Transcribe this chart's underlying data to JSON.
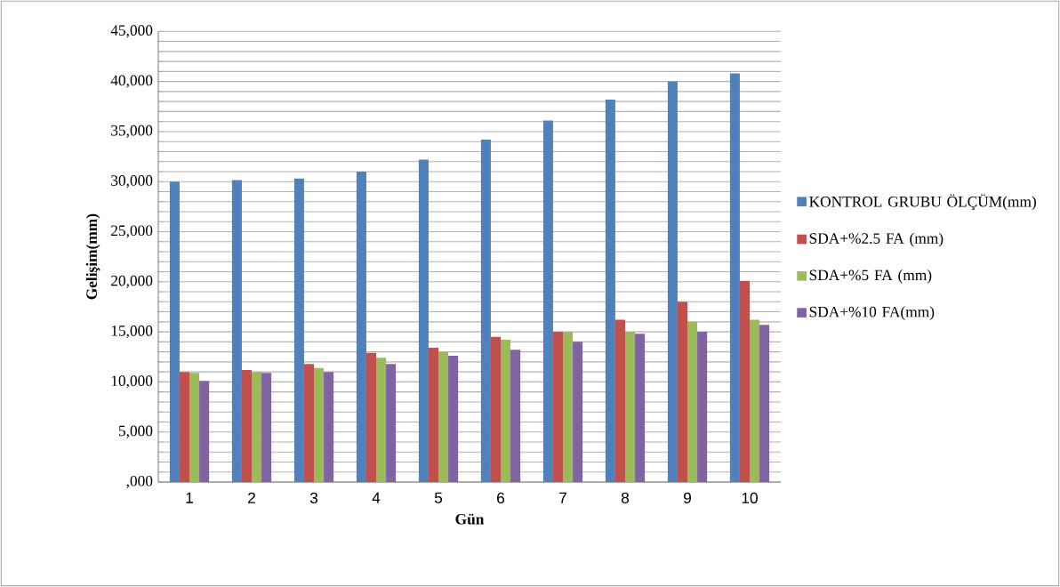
{
  "chart_data": {
    "type": "bar",
    "xlabel": "Gün",
    "ylabel": "Gelişim(mm)",
    "categories": [
      "1",
      "2",
      "3",
      "4",
      "5",
      "6",
      "7",
      "8",
      "9",
      "10"
    ],
    "series": [
      {
        "name": "KONTROL GRUBU ÖLÇÜM(mm)",
        "color": "#4f81bd",
        "values": [
          30000,
          30150,
          30300,
          31000,
          32200,
          34200,
          36100,
          38200,
          40000,
          40800
        ]
      },
      {
        "name": "SDA+%2.5 FA (mm)",
        "color": "#c0504d",
        "values": [
          11000,
          11200,
          11800,
          12900,
          13400,
          14500,
          15000,
          16200,
          18000,
          20100
        ]
      },
      {
        "name": "SDA+%5 FA (mm)",
        "color": "#9bbb59",
        "values": [
          10900,
          11000,
          11400,
          12400,
          13000,
          14200,
          15000,
          15000,
          16000,
          16200
        ]
      },
      {
        "name": "SDA+%10 FA(mm)",
        "color": "#8064a2",
        "values": [
          10100,
          10900,
          11000,
          11800,
          12600,
          13200,
          14000,
          14800,
          15000,
          15700
        ]
      }
    ],
    "ylim": [
      0,
      45000
    ],
    "yticks": [
      {
        "value": 0,
        "label": ",000"
      },
      {
        "value": 1000,
        "label": null
      },
      {
        "value": 2000,
        "label": null
      },
      {
        "value": 3000,
        "label": null
      },
      {
        "value": 4000,
        "label": null
      },
      {
        "value": 5000,
        "label": "5,000"
      },
      {
        "value": 6000,
        "label": null
      },
      {
        "value": 7000,
        "label": null
      },
      {
        "value": 8000,
        "label": null
      },
      {
        "value": 9000,
        "label": null
      },
      {
        "value": 10000,
        "label": "10,000"
      },
      {
        "value": 11000,
        "label": null
      },
      {
        "value": 12000,
        "label": null
      },
      {
        "value": 13000,
        "label": null
      },
      {
        "value": 14000,
        "label": null
      },
      {
        "value": 15000,
        "label": "15,000"
      },
      {
        "value": 16000,
        "label": null
      },
      {
        "value": 17000,
        "label": null
      },
      {
        "value": 18000,
        "label": null
      },
      {
        "value": 19000,
        "label": null
      },
      {
        "value": 20000,
        "label": "20,000"
      },
      {
        "value": 21000,
        "label": null
      },
      {
        "value": 22000,
        "label": null
      },
      {
        "value": 23000,
        "label": null
      },
      {
        "value": 24000,
        "label": null
      },
      {
        "value": 25000,
        "label": "25,000"
      },
      {
        "value": 26000,
        "label": null
      },
      {
        "value": 27000,
        "label": null
      },
      {
        "value": 28000,
        "label": null
      },
      {
        "value": 29000,
        "label": null
      },
      {
        "value": 30000,
        "label": "30,000"
      },
      {
        "value": 31000,
        "label": null
      },
      {
        "value": 32000,
        "label": null
      },
      {
        "value": 33000,
        "label": null
      },
      {
        "value": 34000,
        "label": null
      },
      {
        "value": 35000,
        "label": "35,000"
      },
      {
        "value": 36000,
        "label": null
      },
      {
        "value": 37000,
        "label": null
      },
      {
        "value": 38000,
        "label": null
      },
      {
        "value": 39000,
        "label": null
      },
      {
        "value": 40000,
        "label": "40,000"
      },
      {
        "value": 41000,
        "label": null
      },
      {
        "value": 42000,
        "label": null
      },
      {
        "value": 43000,
        "label": null
      },
      {
        "value": 44000,
        "label": null
      },
      {
        "value": 45000,
        "label": "45,000"
      }
    ],
    "grid": "y",
    "legend": "right"
  }
}
